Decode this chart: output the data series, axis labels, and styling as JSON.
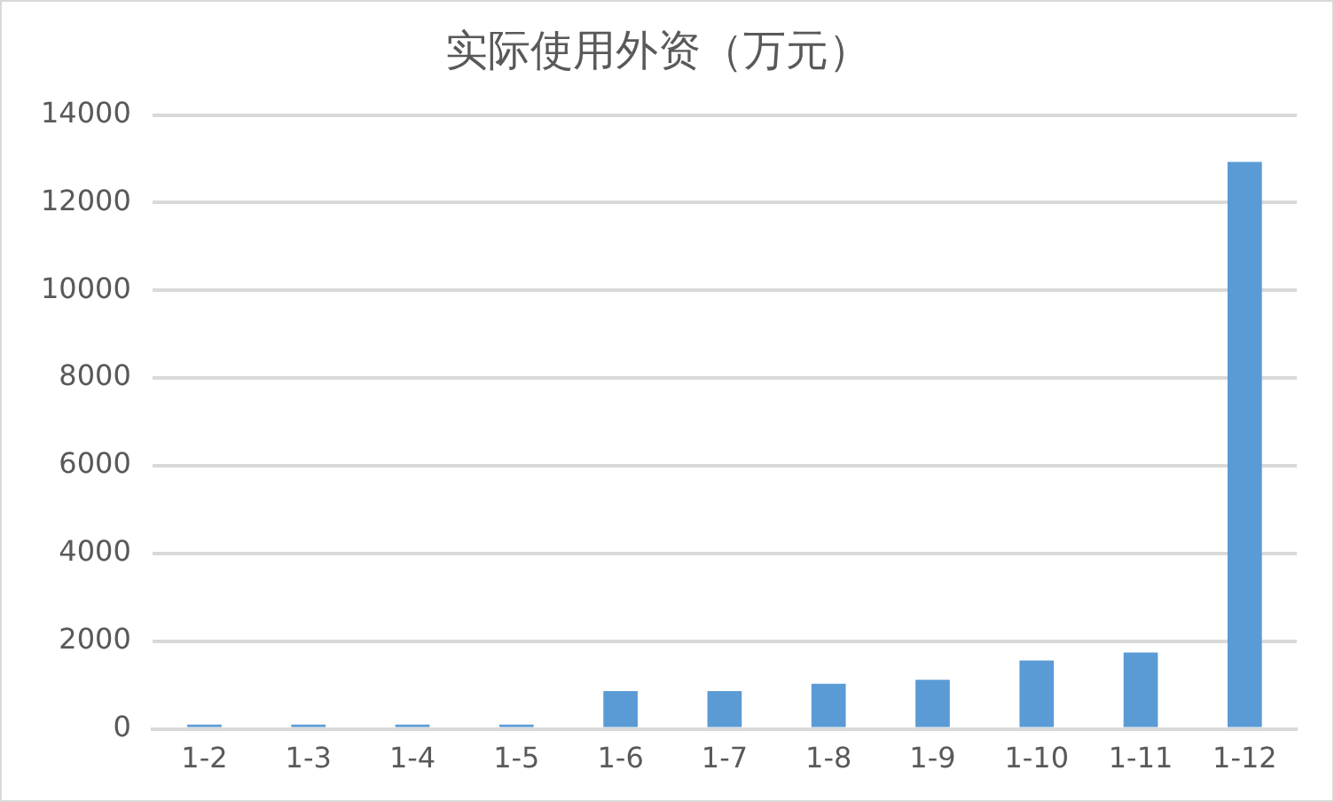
{
  "chart_data": {
    "type": "bar",
    "title": "实际使用外资（万元）",
    "categories": [
      "1-2",
      "1-3",
      "1-4",
      "1-5",
      "1-6",
      "1-7",
      "1-8",
      "1-9",
      "1-10",
      "1-11",
      "1-12"
    ],
    "values": [
      100,
      100,
      100,
      100,
      860,
      860,
      1030,
      1120,
      1560,
      1740,
      12930
    ],
    "color": "#5b9bd5",
    "ylim": [
      0,
      14000
    ],
    "yticks": [
      0,
      2000,
      4000,
      6000,
      8000,
      10000,
      12000,
      14000
    ],
    "grid": "y"
  }
}
